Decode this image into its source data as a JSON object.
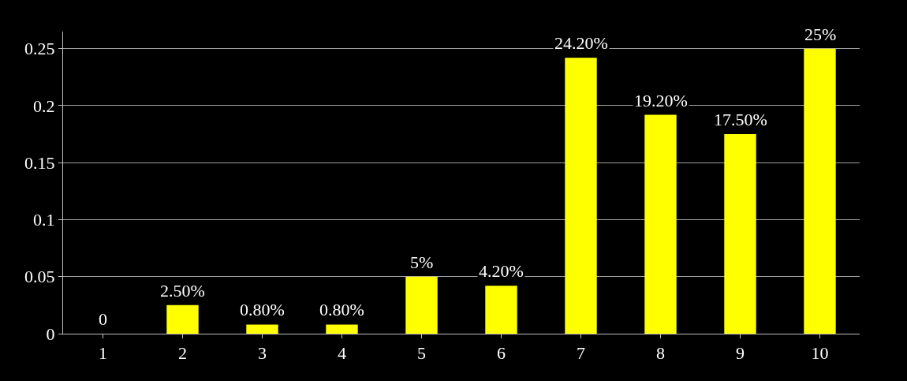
{
  "chart_data": {
    "type": "bar",
    "categories": [
      "1",
      "2",
      "3",
      "4",
      "5",
      "6",
      "7",
      "8",
      "9",
      "10"
    ],
    "values": [
      0,
      0.025,
      0.008,
      0.008,
      0.05,
      0.042,
      0.242,
      0.192,
      0.175,
      0.25
    ],
    "value_labels": [
      "0",
      "2.50%",
      "0.80%",
      "0.80%",
      "5%",
      "4.20%",
      "24.20%",
      "19.20%",
      "17.50%",
      "25%"
    ],
    "color": "#ffff00",
    "ylim": [
      0,
      0.265
    ],
    "yticks": [
      0,
      0.05,
      0.1,
      0.15,
      0.2,
      0.25
    ],
    "grid": "y",
    "legend": false
  }
}
